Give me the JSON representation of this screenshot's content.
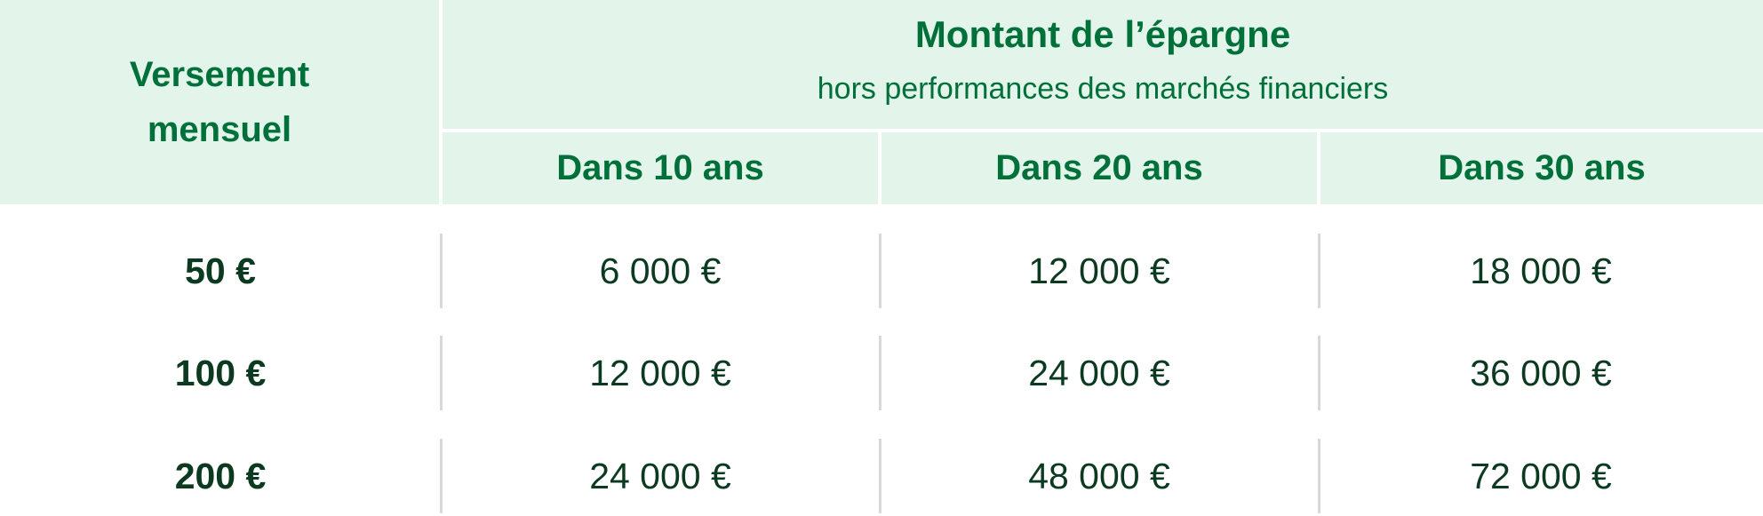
{
  "table": {
    "header": {
      "versement_label": "Versement mensuel",
      "montant_title": "Montant de l’épargne",
      "montant_subtitle": "hors performances des marchés financiers",
      "columns": [
        "Dans 10 ans",
        "Dans 20 ans",
        "Dans 30 ans"
      ]
    },
    "rows": [
      {
        "label": "50 €",
        "values": [
          "6 000 €",
          "12 000 €",
          "18 000 €"
        ]
      },
      {
        "label": "100 €",
        "values": [
          "12 000 €",
          "24 000 €",
          "36 000 €"
        ]
      },
      {
        "label": "200 €",
        "values": [
          "24 000 €",
          "48 000 €",
          "72 000 €"
        ]
      }
    ]
  },
  "colors": {
    "header_background": "#e3f5eb",
    "header_text": "#00703a",
    "body_text": "#0c3a20",
    "divider": "#d8d8d8"
  }
}
